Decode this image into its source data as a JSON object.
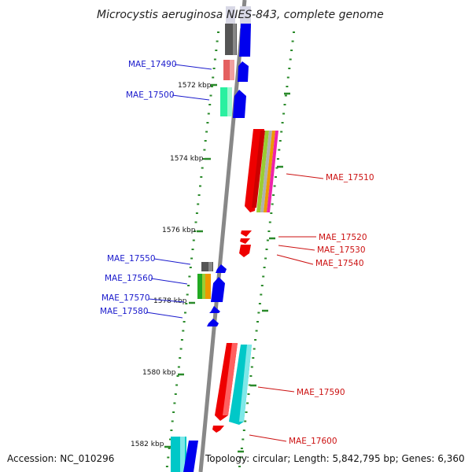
{
  "title": "Microcystis aeruginosa NIES-843, complete genome",
  "footer": {
    "accession": "Accession: NC_010296",
    "summary": "Topology: circular; Length: 5,842,795 bp; Genes: 6,360"
  },
  "colors": {
    "backbone": "#888888",
    "tick": "#2a8a2a",
    "forward_label": "#1a1acc",
    "reverse_label": "#cc1111"
  },
  "scale_labels": [
    "1572 kbp",
    "1574 kbp",
    "1576 kbp",
    "1578 kbp",
    "1580 kbp",
    "1582 kbp"
  ],
  "genes": [
    {
      "name": "MAE_17490",
      "strand": "forward"
    },
    {
      "name": "MAE_17500",
      "strand": "forward"
    },
    {
      "name": "MAE_17510",
      "strand": "reverse"
    },
    {
      "name": "MAE_17520",
      "strand": "reverse"
    },
    {
      "name": "MAE_17530",
      "strand": "reverse"
    },
    {
      "name": "MAE_17540",
      "strand": "reverse"
    },
    {
      "name": "MAE_17550",
      "strand": "forward"
    },
    {
      "name": "MAE_17560",
      "strand": "forward"
    },
    {
      "name": "MAE_17570",
      "strand": "forward"
    },
    {
      "name": "MAE_17580",
      "strand": "forward"
    },
    {
      "name": "MAE_17590",
      "strand": "reverse"
    },
    {
      "name": "MAE_17600",
      "strand": "reverse"
    }
  ]
}
